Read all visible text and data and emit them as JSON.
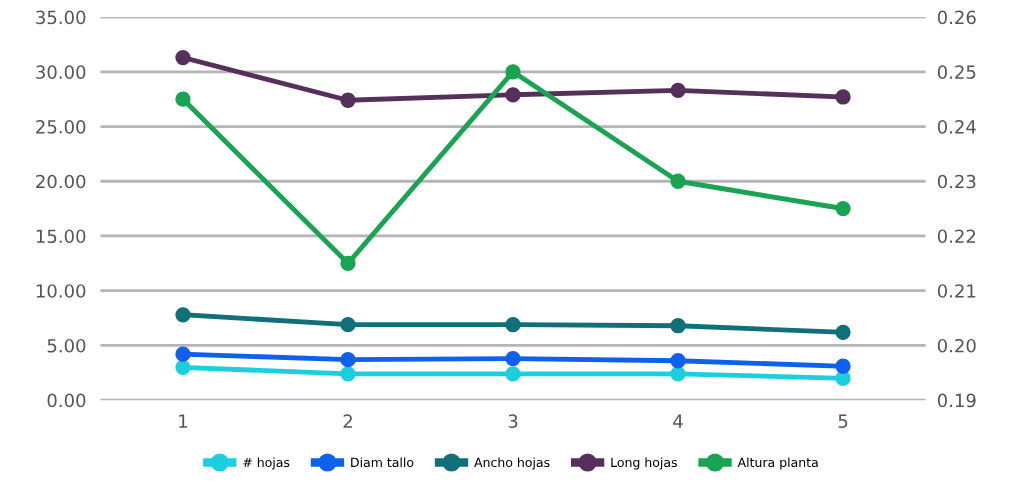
{
  "chart_data": {
    "type": "line",
    "categories": [
      "1",
      "2",
      "3",
      "4",
      "5"
    ],
    "series": [
      {
        "name": "# hojas",
        "color": "#1ccfdf",
        "values": [
          3.0,
          2.4,
          2.4,
          2.4,
          2.0
        ]
      },
      {
        "name": "Diam tallo",
        "color": "#1060ee",
        "values": [
          4.2,
          3.7,
          3.8,
          3.6,
          3.1
        ]
      },
      {
        "name": "Ancho hojas",
        "color": "#10707a",
        "values": [
          7.8,
          6.9,
          6.9,
          6.8,
          6.2
        ]
      },
      {
        "name": "Long hojas",
        "color": "#55305a",
        "values": [
          31.3,
          27.4,
          27.9,
          28.3,
          27.7
        ]
      },
      {
        "name": "Altura planta",
        "color": "#18a452",
        "values": [
          27.5,
          12.5,
          30.0,
          20.0,
          17.5
        ]
      }
    ],
    "ylim": [
      0,
      35
    ],
    "yticks": [
      {
        "value": 0,
        "label": "0.00"
      },
      {
        "value": 5,
        "label": "5.00"
      },
      {
        "value": 10,
        "label": "10.00"
      },
      {
        "value": 15,
        "label": "15.00"
      },
      {
        "value": 20,
        "label": "20.00"
      },
      {
        "value": 25,
        "label": "25.00"
      },
      {
        "value": 30,
        "label": "30.00"
      },
      {
        "value": 35,
        "label": "35.00"
      }
    ],
    "y2lim": [
      0.19,
      0.26
    ],
    "y2ticks": [
      0.19,
      {
        "value": 0.2,
        "label": "0.20"
      },
      0.21,
      0.22,
      0.23,
      0.24,
      0.25,
      0.26
    ],
    "grid": "y",
    "legend": "bottom",
    "marker": "circle",
    "line_style": "solid"
  }
}
